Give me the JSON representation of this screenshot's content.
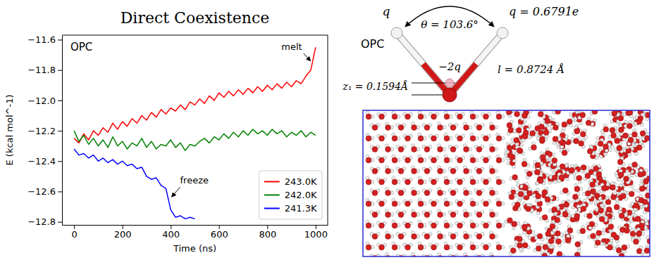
{
  "chart_data": {
    "type": "line",
    "title": "Direct Coexistence",
    "x_label": "Time (ns)",
    "y_label": "E (kcal mol^-1)",
    "annotations": [
      {
        "text": "OPC"
      },
      {
        "text": "melt",
        "x": 985,
        "y": -11.75
      },
      {
        "text": "freeze",
        "x": 398,
        "y": -12.65
      }
    ],
    "x": [
      0,
      20,
      40,
      60,
      80,
      100,
      120,
      140,
      160,
      180,
      200,
      220,
      240,
      260,
      280,
      300,
      320,
      340,
      360,
      380,
      400,
      420,
      440,
      460,
      480,
      500,
      520,
      540,
      560,
      580,
      600,
      620,
      640,
      660,
      680,
      700,
      720,
      740,
      760,
      780,
      800,
      820,
      840,
      860,
      880,
      900,
      920,
      940,
      960,
      980,
      1000
    ],
    "series": [
      {
        "name": "243.0K",
        "color": "#ff0000",
        "values": [
          -12.25,
          -12.28,
          -12.22,
          -12.26,
          -12.2,
          -12.23,
          -12.18,
          -12.21,
          -12.15,
          -12.19,
          -12.14,
          -12.17,
          -12.12,
          -12.15,
          -12.1,
          -12.13,
          -12.08,
          -12.11,
          -12.06,
          -12.09,
          -12.05,
          -12.07,
          -12.03,
          -12.06,
          -12.01,
          -12.03,
          -11.99,
          -12.02,
          -11.97,
          -12.0,
          -11.95,
          -11.98,
          -11.94,
          -11.97,
          -11.93,
          -11.96,
          -11.92,
          -11.95,
          -11.91,
          -11.94,
          -11.9,
          -11.93,
          -11.89,
          -11.92,
          -11.88,
          -11.91,
          -11.87,
          -11.89,
          -11.84,
          -11.8,
          -11.65
        ]
      },
      {
        "name": "242.0K",
        "color": "#008000",
        "values": [
          -12.2,
          -12.27,
          -12.23,
          -12.29,
          -12.25,
          -12.3,
          -12.26,
          -12.31,
          -12.24,
          -12.3,
          -12.27,
          -12.32,
          -12.28,
          -12.3,
          -12.25,
          -12.31,
          -12.27,
          -12.32,
          -12.29,
          -12.3,
          -12.26,
          -12.31,
          -12.28,
          -12.33,
          -12.29,
          -12.3,
          -12.27,
          -12.25,
          -12.28,
          -12.24,
          -12.26,
          -12.22,
          -12.25,
          -12.21,
          -12.24,
          -12.2,
          -12.23,
          -12.19,
          -12.22,
          -12.2,
          -12.23,
          -12.19,
          -12.22,
          -12.2,
          -12.24,
          -12.21,
          -12.23,
          -12.2,
          -12.24,
          -12.21,
          -12.23
        ]
      },
      {
        "name": "241.3K",
        "color": "#0000ff",
        "values": [
          -12.32,
          -12.36,
          -12.35,
          -12.38,
          -12.36,
          -12.4,
          -12.38,
          -12.41,
          -12.39,
          -12.42,
          -12.4,
          -12.43,
          -12.42,
          -12.45,
          -12.44,
          -12.5,
          -12.52,
          -12.51,
          -12.56,
          -12.58,
          -12.72,
          -12.77,
          -12.76,
          -12.78,
          -12.77,
          -12.78,
          null,
          null,
          null,
          null,
          null,
          null,
          null,
          null,
          null,
          null,
          null,
          null,
          null,
          null,
          null,
          null,
          null,
          null,
          null,
          null,
          null,
          null,
          null,
          null,
          null
        ]
      }
    ],
    "xlim": [
      -50,
      1050
    ],
    "xticks": [
      0,
      200,
      400,
      600,
      800,
      1000
    ],
    "ylim": [
      -12.82,
      -11.57
    ],
    "yticks": [
      {
        "value": -12.8,
        "label": "−12.8"
      },
      {
        "value": -12.6,
        "label": "−12.6"
      },
      {
        "value": -12.4,
        "label": "−12.4"
      },
      {
        "value": -12.2,
        "label": "−12.2"
      },
      {
        "value": -12.0,
        "label": "−12.0"
      },
      {
        "value": -11.8,
        "label": "−11.8"
      },
      {
        "value": -11.6,
        "label": "−11.6"
      }
    ],
    "grid": false,
    "legend": "lower right"
  },
  "diagram": {
    "model": "OPC",
    "labels": {
      "charge_h": "q",
      "angle": "θ = 103.6°",
      "charge_h_value": "q = 0.6791e",
      "charge_m": "−2q",
      "bond": "l = 0.8724 Å",
      "offset": "z₁ = 0.1594Å"
    }
  }
}
